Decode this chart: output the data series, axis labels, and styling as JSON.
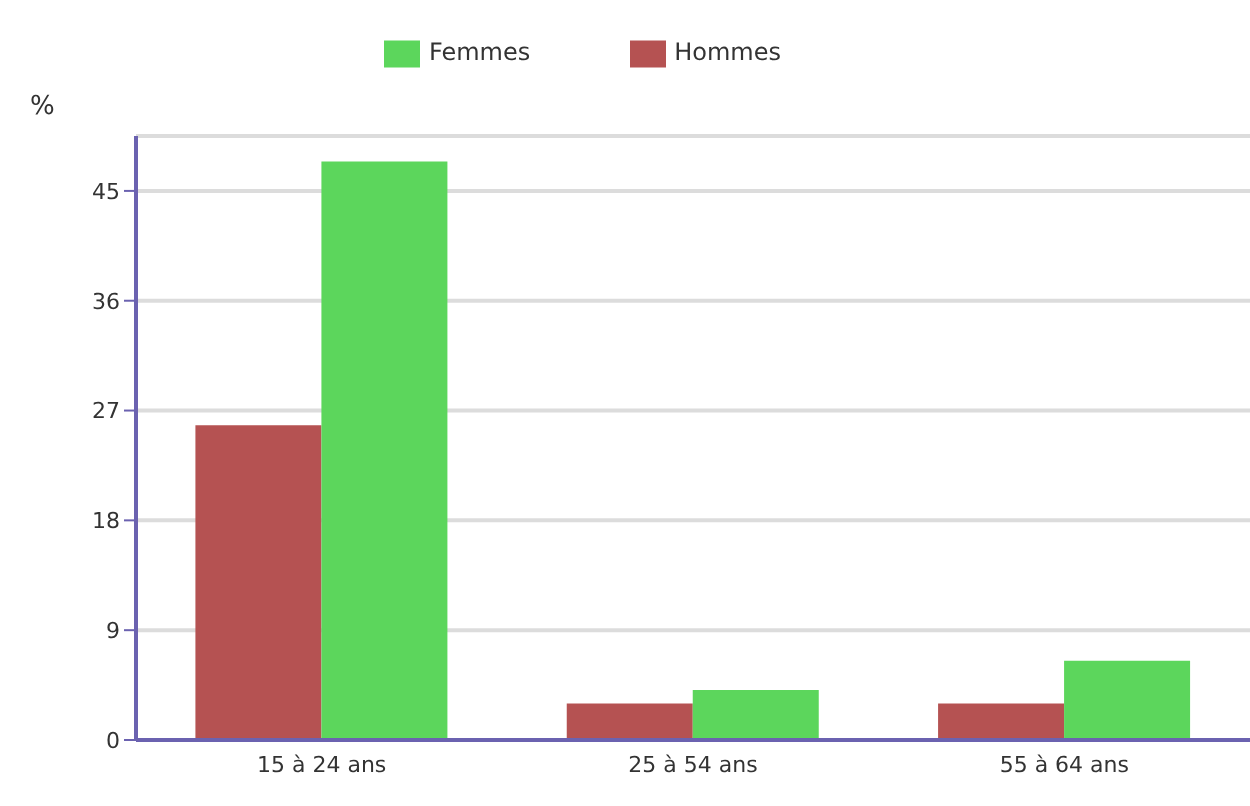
{
  "chart_data": {
    "type": "bar",
    "ylabel": "%",
    "categories": [
      "15 à 24 ans",
      "25 à 54 ans",
      "55 à 64 ans"
    ],
    "series": [
      {
        "name": "Hommes",
        "color": "#b55252",
        "values": [
          25.8,
          3.0,
          3.0
        ]
      },
      {
        "name": "Femmes",
        "color": "#5cd65c",
        "values": [
          47.4,
          4.1,
          6.5
        ]
      }
    ],
    "ylim": [
      0,
      49.5
    ],
    "yticks": [
      0,
      9,
      18,
      27,
      36,
      45
    ],
    "grid": "y",
    "legend": "top"
  }
}
